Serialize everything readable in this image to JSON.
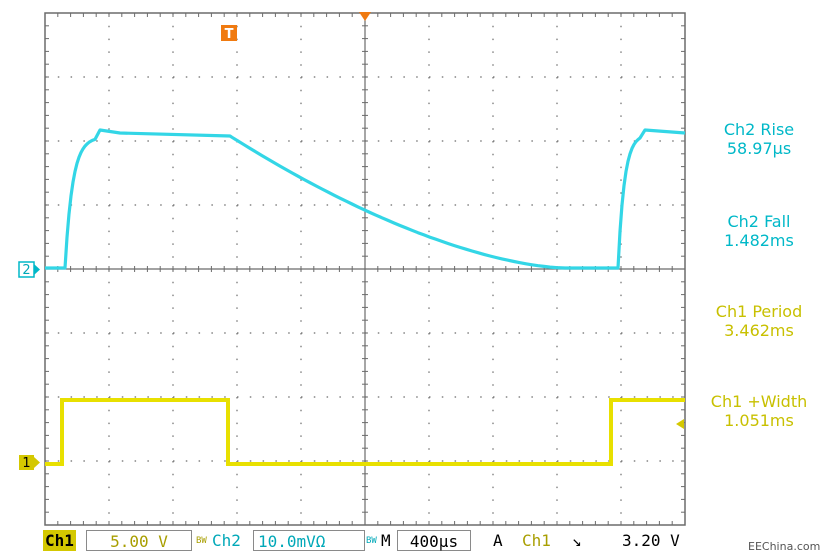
{
  "scope": {
    "colors": {
      "ch1": "#e8e000",
      "ch2": "#33d6e6",
      "trigger": "#f07a10",
      "grid": "#6b6b6b"
    },
    "markers": {
      "ch1": "1",
      "ch2": "2",
      "trigger": "T"
    }
  },
  "measurements": [
    {
      "label": "Ch2 Rise",
      "value": "58.97µs",
      "channel": "ch2"
    },
    {
      "label": "Ch2 Fall",
      "value": "1.482ms",
      "channel": "ch2"
    },
    {
      "label": "Ch1 Period",
      "value": "3.462ms",
      "channel": "ch1"
    },
    {
      "label": "Ch1 +Width",
      "value": "1.051ms",
      "channel": "ch1"
    }
  ],
  "statusbar": {
    "ch1_label": "Ch1",
    "ch1_scale": "5.00 V",
    "bw1": "BW",
    "ch2_label": "Ch2",
    "ch2_scale": "10.0mVΩ",
    "bw2": "BW",
    "m": "M",
    "timebase": "400µs",
    "acq": "A",
    "trig_source": "Ch1",
    "trig_slope": "↘",
    "trig_level": "3.20 V"
  },
  "watermark": "EEChina.com"
}
